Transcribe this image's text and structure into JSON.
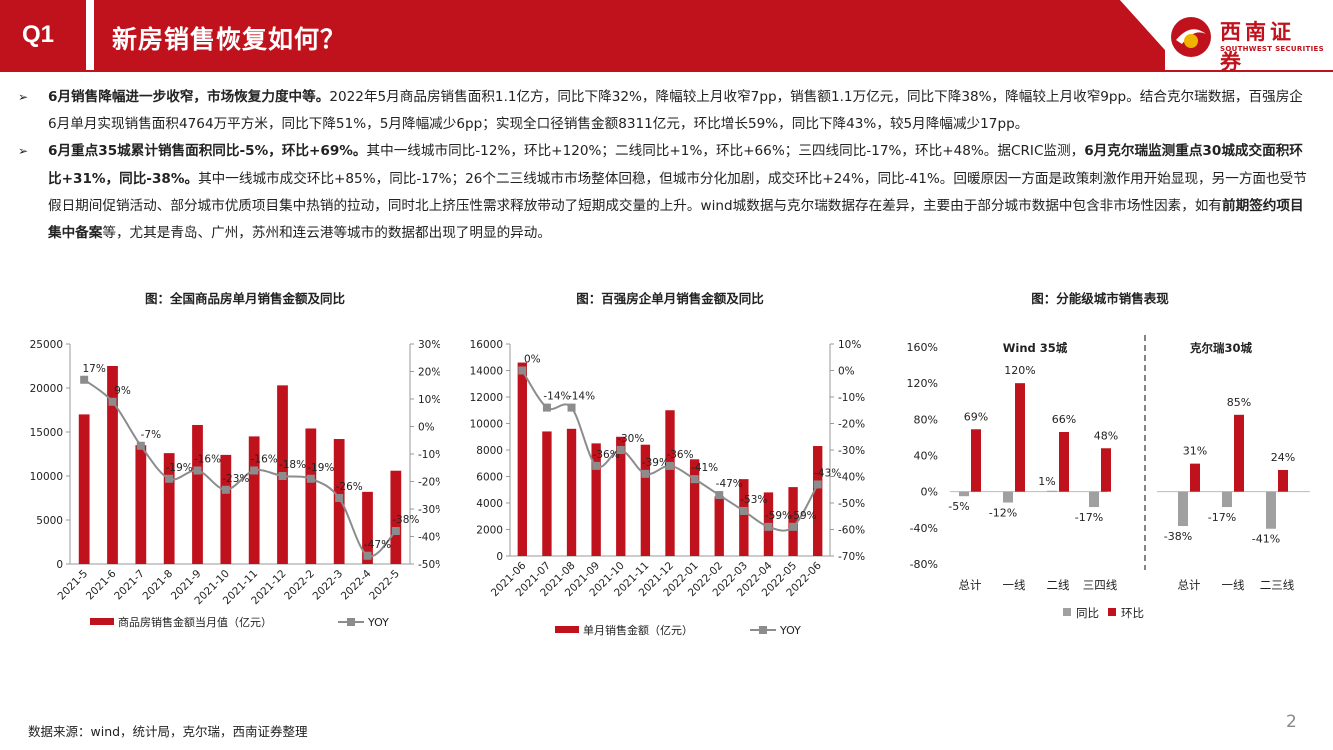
{
  "header": {
    "section": "Q1",
    "title": "新房销售恢复如何？",
    "logo_cn": "西南证券",
    "logo_en": "SOUTHWEST SECURITIES"
  },
  "bullets": [
    {
      "bold": "6月销售降幅进一步收窄，市场恢复力度中等。",
      "text": "2022年5月商品房销售面积1.1亿方，同比下降32%，降幅较上月收窄7pp，销售额1.1万亿元，同比下降38%，降幅较上月收窄9pp。结合克尔瑞数据，百强房企6月单月实现销售面积4764万平方米，同比下降51%，5月降幅减少6pp；实现全口径销售金额8311亿元，环比增长59%，同比下降43%，较5月降幅减少17pp。"
    },
    {
      "bold": "6月重点35城累计销售面积同比-5%，环比+69%。",
      "text": "其中一线城市同比-12%，环比+120%；二线同比+1%，环比+66%；三四线同比-17%，环比+48%。据CRIC监测，",
      "bold2": "6月克尔瑞监测重点30城成交面积环比+31%，同比-38%。",
      "text2": "其中一线城市成交环比+85%，同比-17%；26个二三线城市市场整体回稳，但城市分化加剧，成交环比+24%，同比-41%。回暖原因一方面是政策刺激作用开始显现，另一方面也受节假日期间促销活动、部分城市优质项目集中热销的拉动，同时北上挤压性需求释放带动了短期成交量的上升。wind城数据与克尔瑞数据存在差异，主要由于部分城市数据中包含非市场性因素，如有",
      "bold3": "前期签约项目集中备案",
      "text3": "等，尤其是青岛、广州，苏州和连云港等城市的数据都出现了明显的异动。"
    }
  ],
  "chart_data": [
    {
      "type": "bar",
      "title": "图：全国商品房单月销售金额及同比",
      "categories": [
        "2021-5",
        "2021-6",
        "2021-7",
        "2021-8",
        "2021-9",
        "2021-10",
        "2021-11",
        "2021-12",
        "2022-2",
        "2022-3",
        "2022-4",
        "2022-5"
      ],
      "series": [
        {
          "name": "商品房销售金额当月值（亿元）",
          "axis": "left",
          "kind": "bar",
          "values": [
            17000,
            22500,
            13500,
            12600,
            15800,
            12400,
            14500,
            20300,
            15400,
            14200,
            8200,
            10600
          ]
        },
        {
          "name": "YOY",
          "axis": "right",
          "kind": "line",
          "values": [
            17,
            9,
            -7,
            -19,
            -16,
            -23,
            -16,
            -18,
            -19,
            -26,
            -47,
            -38
          ]
        }
      ],
      "labels": [
        "17%",
        "9%",
        "-7%",
        "-19%",
        "-16%",
        "-23%",
        "-16%",
        "-18%",
        "-19%",
        "-26%",
        "-47%",
        "-38%"
      ],
      "y_left": {
        "min": 0,
        "max": 25000,
        "step": 5000,
        "ticks": [
          "0",
          "5000",
          "10000",
          "15000",
          "20000",
          "25000"
        ]
      },
      "y_right": {
        "min": -50,
        "max": 30,
        "step": 10,
        "ticks": [
          "-50%",
          "-40%",
          "-30%",
          "-20%",
          "-10%",
          "0%",
          "10%",
          "20%",
          "30%"
        ]
      }
    },
    {
      "type": "bar",
      "title": "图：百强房企单月销售金额及同比",
      "categories": [
        "2021-06",
        "2021-07",
        "2021-08",
        "2021-09",
        "2021-10",
        "2021-11",
        "2021-12",
        "2022-01",
        "2022-02",
        "2022-03",
        "2022-04",
        "2022-05",
        "2022-06"
      ],
      "series": [
        {
          "name": "单月销售金额（亿元）",
          "axis": "left",
          "kind": "bar",
          "values": [
            14600,
            9400,
            9600,
            8500,
            9000,
            8400,
            11000,
            7300,
            4500,
            5800,
            4800,
            5200,
            8300
          ]
        },
        {
          "name": "YOY",
          "axis": "right",
          "kind": "line",
          "values": [
            0,
            -14,
            -14,
            -36,
            -30,
            -39,
            -36,
            -41,
            -47,
            -53,
            -59,
            -59,
            -43
          ]
        }
      ],
      "labels": [
        "0%",
        "-14%",
        "-14%",
        "-36%",
        "-30%",
        "-39%",
        "-36%",
        "-41%",
        "-47%",
        "-53%",
        "-59%",
        "-59%",
        "-43%"
      ],
      "y_left": {
        "min": 0,
        "max": 16000,
        "step": 2000,
        "ticks": [
          "0",
          "2000",
          "4000",
          "6000",
          "8000",
          "10000",
          "12000",
          "14000",
          "16000"
        ]
      },
      "y_right": {
        "min": -70,
        "max": 10,
        "step": 10,
        "ticks": [
          "-70%",
          "-60%",
          "-50%",
          "-40%",
          "-30%",
          "-20%",
          "-10%",
          "0%",
          "10%"
        ]
      }
    },
    {
      "type": "bar",
      "title": "图：分能级城市销售表现",
      "groups": [
        "Wind 35城",
        "克尔瑞30城"
      ],
      "categories": [
        "总计",
        "一线",
        "二线",
        "三四线",
        "总计",
        "一线",
        "二三线"
      ],
      "series": [
        {
          "name": "同比",
          "values": [
            -5,
            -12,
            1,
            -17,
            -38,
            -17,
            -41
          ],
          "labels": [
            "-5%",
            "-12%",
            "1%",
            "-17%",
            "-38%",
            "-17%",
            "-41%"
          ]
        },
        {
          "name": "环比",
          "values": [
            69,
            120,
            66,
            48,
            31,
            85,
            24
          ],
          "labels": [
            "69%",
            "120%",
            "66%",
            "48%",
            "31%",
            "85%",
            "24%"
          ]
        }
      ],
      "y": {
        "min": -80,
        "max": 160,
        "step": 40,
        "ticks": [
          "-80%",
          "-40%",
          "0%",
          "40%",
          "80%",
          "120%",
          "160%"
        ]
      }
    }
  ],
  "colors": {
    "red": "#c0121c",
    "gray": "#a0a0a0",
    "line": "#8c8c8c"
  },
  "footer": {
    "source": "数据来源：wind，统计局，克尔瑞，西南证券整理",
    "page": "2"
  }
}
